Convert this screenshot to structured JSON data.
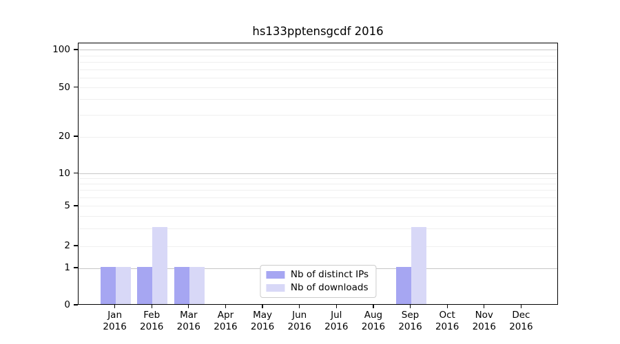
{
  "chart_data": {
    "type": "bar",
    "title": "hs133pptensgcdf 2016",
    "x_axis": {
      "categories": [
        "Jan",
        "Feb",
        "Mar",
        "Apr",
        "May",
        "Jun",
        "Jul",
        "Aug",
        "Sep",
        "Oct",
        "Nov",
        "Dec"
      ],
      "year": "2016"
    },
    "y_axis": {
      "scale": "symlog",
      "ticks": [
        0,
        1,
        2,
        5,
        10,
        20,
        50,
        100
      ],
      "ylim": [
        0,
        110
      ]
    },
    "series": [
      {
        "name": "Nb of distinct IPs",
        "color": "#a6a6f2",
        "values": [
          1,
          1,
          1,
          0,
          0,
          0,
          0,
          0,
          1,
          0,
          0,
          0
        ]
      },
      {
        "name": "Nb of downloads",
        "color": "#d8d8f7",
        "values": [
          1,
          3,
          1,
          0,
          0,
          0,
          0,
          0,
          3,
          0,
          0,
          0
        ]
      }
    ],
    "legend": {
      "position": "lower center"
    },
    "grid": true,
    "colors": {
      "grid_major": "#c6c6c6",
      "grid_minor": "#efefef",
      "axis": "#000000",
      "background": "#ffffff"
    }
  }
}
